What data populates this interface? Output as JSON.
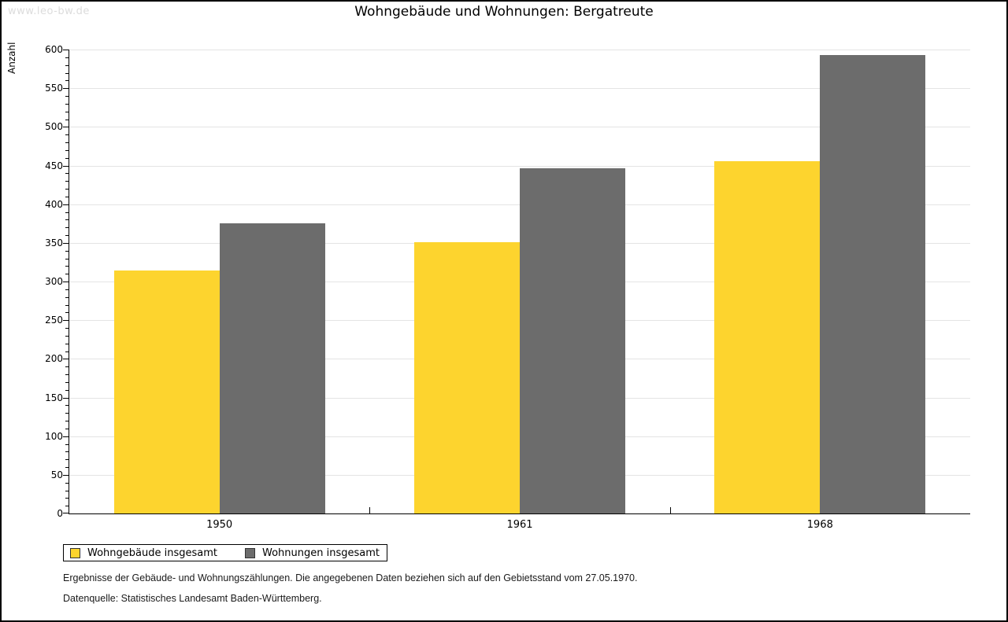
{
  "watermark": "www.leo-bw.de",
  "chart_data": {
    "type": "bar",
    "title": "Wohngebäude und Wohnungen: Bergatreute",
    "ylabel": "Anzahl",
    "xlabel": "",
    "categories": [
      "1950",
      "1961",
      "1968"
    ],
    "series": [
      {
        "name": "Wohngebäude insgesamt",
        "color": "#FDD42E",
        "values": [
          314,
          351,
          456
        ]
      },
      {
        "name": "Wohnungen insgesamt",
        "color": "#6C6C6C",
        "values": [
          375,
          446,
          593
        ]
      }
    ],
    "ylim": [
      0,
      600
    ],
    "y_major_step": 50,
    "y_minor_step": 10,
    "grid": "horizontal",
    "legend_position": "bottom-left"
  },
  "footnotes": [
    "Ergebnisse der Gebäude- und Wohnungszählungen. Die angegebenen Daten beziehen sich auf den Gebietsstand vom 27.05.1970.",
    "Datenquelle: Statistisches Landesamt Baden-Württemberg."
  ]
}
